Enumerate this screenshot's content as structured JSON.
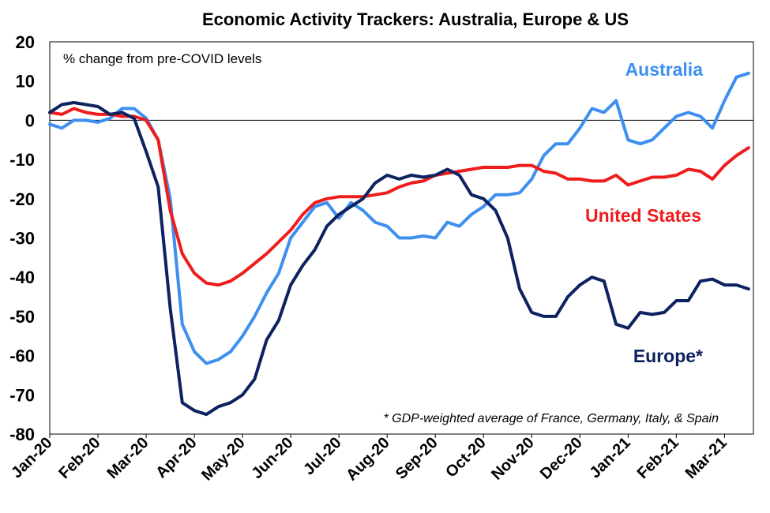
{
  "chart_data": {
    "type": "line",
    "title": "Economic Activity Trackers: Australia, Europe & US",
    "annotation": "% change from pre-COVID levels",
    "footnote": "* GDP-weighted average of France, Germany, Italy, & Spain",
    "ylim": [
      -80,
      20
    ],
    "yticks": [
      20,
      10,
      0,
      -10,
      -20,
      -30,
      -40,
      -50,
      -60,
      -70,
      -80
    ],
    "x_tick_labels": [
      "Jan-20",
      "Feb-20",
      "Mar-20",
      "Apr-20",
      "May-20",
      "Jun-20",
      "Jul-20",
      "Aug-20",
      "Sep-20",
      "Oct-20",
      "Nov-20",
      "Dec-20",
      "Jan-21",
      "Feb-21",
      "Mar-21"
    ],
    "x_range": [
      0,
      14.6
    ],
    "series": [
      {
        "name": "Australia",
        "color": "#3d8ff0",
        "x": [
          0,
          0.25,
          0.5,
          0.75,
          1,
          1.25,
          1.5,
          1.75,
          2,
          2.25,
          2.5,
          2.75,
          3,
          3.25,
          3.5,
          3.75,
          4,
          4.25,
          4.5,
          4.75,
          5,
          5.25,
          5.5,
          5.75,
          6,
          6.25,
          6.5,
          6.75,
          7,
          7.25,
          7.5,
          7.75,
          8,
          8.25,
          8.5,
          8.75,
          9,
          9.25,
          9.5,
          9.75,
          10,
          10.25,
          10.5,
          10.75,
          11,
          11.25,
          11.5,
          11.75,
          12,
          12.25,
          12.5,
          12.75,
          13,
          13.25,
          13.5,
          13.75,
          14,
          14.25,
          14.5
        ],
        "values": [
          -1,
          -2,
          0,
          0,
          -0.5,
          0.5,
          3,
          3,
          0.5,
          -5,
          -20,
          -52,
          -59,
          -62,
          -61,
          -59,
          -55,
          -50,
          -44,
          -39,
          -30,
          -26,
          -22,
          -21,
          -25,
          -21,
          -23,
          -26,
          -27,
          -30,
          -30,
          -29.5,
          -30,
          -26,
          -27,
          -24,
          -22,
          -19,
          -19,
          -18.5,
          -15,
          -9,
          -6,
          -6,
          -2,
          3,
          2,
          5,
          -5,
          -6,
          -5,
          -2,
          1,
          2,
          1,
          -2,
          5,
          11,
          12
        ]
      },
      {
        "name": "United States",
        "color": "#ef1c1c",
        "x": [
          0,
          0.25,
          0.5,
          0.75,
          1,
          1.25,
          1.5,
          1.75,
          2,
          2.25,
          2.5,
          2.75,
          3,
          3.25,
          3.5,
          3.75,
          4,
          4.25,
          4.5,
          4.75,
          5,
          5.25,
          5.5,
          5.75,
          6,
          6.25,
          6.5,
          6.75,
          7,
          7.25,
          7.5,
          7.75,
          8,
          8.25,
          8.5,
          8.75,
          9,
          9.25,
          9.5,
          9.75,
          10,
          10.25,
          10.5,
          10.75,
          11,
          11.25,
          11.5,
          11.75,
          12,
          12.25,
          12.5,
          12.75,
          13,
          13.25,
          13.5,
          13.75,
          14,
          14.25,
          14.5
        ],
        "values": [
          2,
          1.5,
          3,
          2,
          1.5,
          1.5,
          1,
          1,
          0,
          -5,
          -23,
          -34,
          -39,
          -41.5,
          -42,
          -41,
          -39,
          -36.5,
          -34,
          -31,
          -28,
          -24,
          -21,
          -20,
          -19.5,
          -19.5,
          -19.5,
          -19,
          -18.5,
          -17,
          -16,
          -15.5,
          -14,
          -13.5,
          -13,
          -12.5,
          -12,
          -12,
          -12,
          -11.5,
          -11.5,
          -13,
          -13.5,
          -15,
          -15,
          -15.5,
          -15.5,
          -14,
          -16.5,
          -15.5,
          -14.5,
          -14.5,
          -14,
          -12.5,
          -13,
          -15,
          -11.5,
          -9,
          -7
        ]
      },
      {
        "name": "Europe*",
        "color": "#0d2260",
        "x": [
          0,
          0.25,
          0.5,
          0.75,
          1,
          1.25,
          1.5,
          1.75,
          2,
          2.25,
          2.5,
          2.75,
          3,
          3.25,
          3.5,
          3.75,
          4,
          4.25,
          4.5,
          4.75,
          5,
          5.25,
          5.5,
          5.75,
          6,
          6.25,
          6.5,
          6.75,
          7,
          7.25,
          7.5,
          7.75,
          8,
          8.25,
          8.5,
          8.75,
          9,
          9.25,
          9.5,
          9.75,
          10,
          10.25,
          10.5,
          10.75,
          11,
          11.25,
          11.5,
          11.75,
          12,
          12.25,
          12.5,
          12.75,
          13,
          13.25,
          13.5,
          13.75,
          14,
          14.25,
          14.5
        ],
        "values": [
          2,
          4,
          4.5,
          4,
          3.5,
          1.5,
          2,
          0.5,
          -8,
          -17,
          -48,
          -72,
          -74,
          -75,
          -73,
          -72,
          -70,
          -66,
          -56,
          -51,
          -42,
          -37,
          -33,
          -27,
          -24,
          -22,
          -20,
          -16,
          -14,
          -15,
          -14,
          -14.5,
          -14,
          -12.5,
          -14,
          -19,
          -20,
          -23,
          -30,
          -43,
          -49,
          -50,
          -50,
          -45,
          -42,
          -40,
          -41,
          -52,
          -53,
          -49,
          -49.5,
          -49,
          -46,
          -46,
          -41,
          -40.5,
          -42,
          -42,
          -43
        ]
      }
    ],
    "series_labels": [
      "Australia",
      "United States",
      "Europe*"
    ]
  }
}
